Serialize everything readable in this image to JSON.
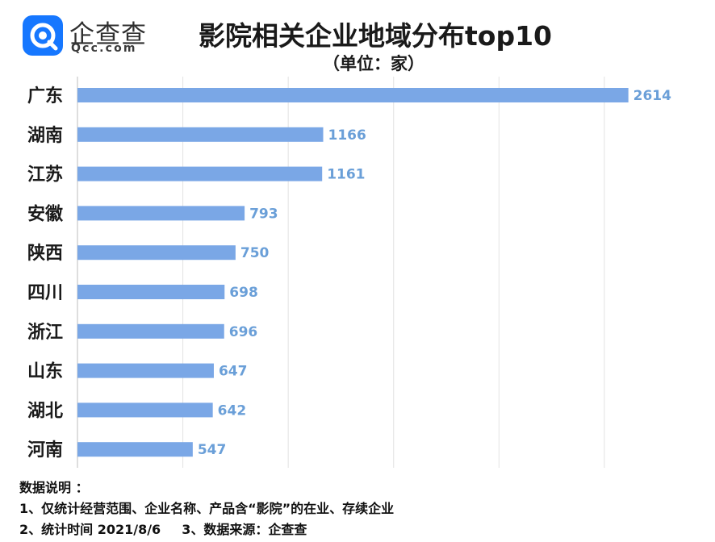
{
  "brand": {
    "name": "企查查",
    "url": "Qcc.com",
    "accent": "#1677ff"
  },
  "chart_data": {
    "type": "bar",
    "orientation": "horizontal",
    "title": "影院相关企业地域分布top10",
    "subtitle": "（单位：家）",
    "categories": [
      "广东",
      "湖南",
      "江苏",
      "安徽",
      "陕西",
      "四川",
      "浙江",
      "山东",
      "湖北",
      "河南"
    ],
    "values": [
      2614,
      1166,
      1161,
      793,
      750,
      698,
      696,
      647,
      642,
      547
    ],
    "xlim": [
      0,
      2600
    ],
    "grid": true,
    "bar_color": "#7aa7e6",
    "label_color": "#6a9fd8"
  },
  "notes": {
    "heading": "数据说明 ：",
    "line1": "1、仅统计经营范围、企业名称、产品含“影院”的在业、存续企业",
    "line2a": "2、统计时间 2021/8/6",
    "line2b": "3、数据来源：企查查"
  }
}
